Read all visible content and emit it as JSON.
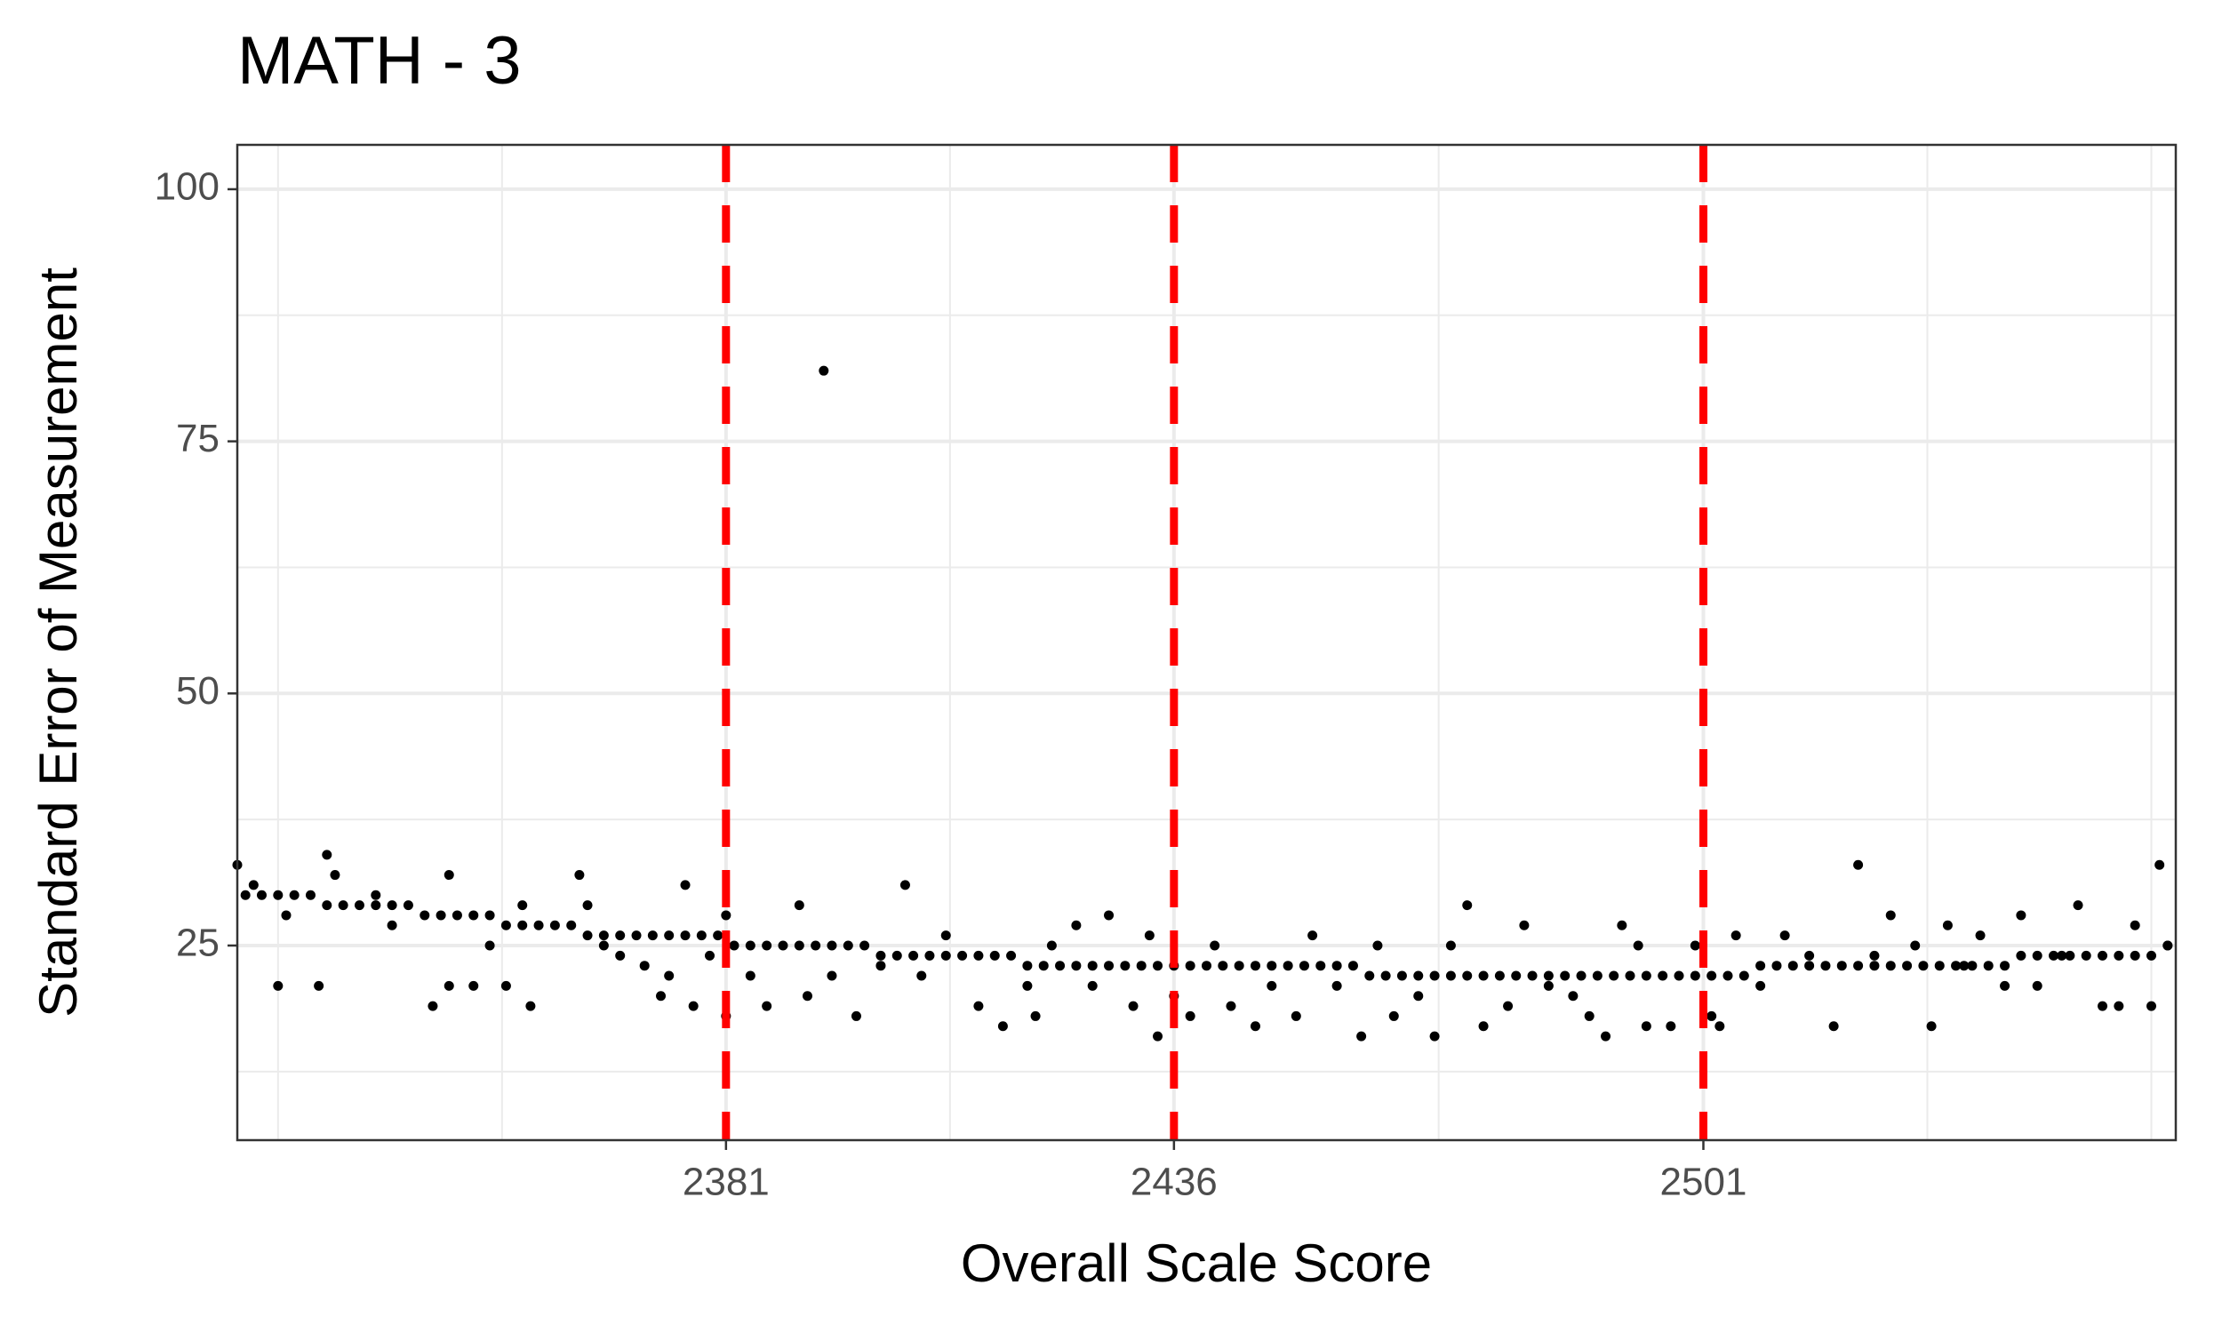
{
  "chart_data": {
    "type": "scatter",
    "title": "MATH - 3",
    "x_label": "Overall Scale Score",
    "y_label": "Standard Error of Measurement",
    "xlim": [
      2321,
      2559
    ],
    "ylim": [
      5.7,
      104.4
    ],
    "xticks": [
      2381,
      2436,
      2501
    ],
    "yticks": [
      25,
      50,
      75,
      100
    ],
    "x_minor_grid": [
      2326,
      2353.5,
      2408.5,
      2468.5,
      2528.5,
      2556
    ],
    "y_minor_grid": [
      12.5,
      37.5,
      62.5,
      87.5
    ],
    "grid": true,
    "vlines": [
      2381,
      2436,
      2501
    ],
    "vline_color": "#ff0000",
    "color": "#000000",
    "x": [
      2322,
      2324,
      2326,
      2328,
      2330,
      2332,
      2334,
      2336,
      2338,
      2340,
      2342,
      2344,
      2346,
      2348,
      2350,
      2352,
      2354,
      2356,
      2358,
      2360,
      2362,
      2364,
      2366,
      2368,
      2370,
      2372,
      2374,
      2376,
      2378,
      2380,
      2382,
      2384,
      2386,
      2388,
      2390,
      2392,
      2394,
      2396,
      2398,
      2400,
      2402,
      2404,
      2406,
      2408,
      2410,
      2412,
      2414,
      2416,
      2418,
      2420,
      2422,
      2424,
      2426,
      2428,
      2430,
      2432,
      2434,
      2436,
      2438,
      2440,
      2442,
      2444,
      2446,
      2448,
      2450,
      2452,
      2454,
      2456,
      2458,
      2460,
      2462,
      2464,
      2466,
      2468,
      2470,
      2472,
      2474,
      2476,
      2478,
      2480,
      2482,
      2484,
      2486,
      2488,
      2490,
      2492,
      2494,
      2496,
      2498,
      2500,
      2502,
      2504,
      2506,
      2508,
      2510,
      2512,
      2514,
      2516,
      2518,
      2520,
      2522,
      2524,
      2526,
      2528,
      2530,
      2532,
      2534,
      2536,
      2538,
      2540,
      2542,
      2544,
      2546,
      2548,
      2550,
      2552,
      2554,
      2556,
      2558,
      2321,
      2323,
      2326,
      2327,
      2331,
      2332,
      2333,
      2338,
      2340,
      2347,
      2345,
      2347,
      2350,
      2352,
      2354,
      2356,
      2357,
      2363,
      2364,
      2366,
      2368,
      2371,
      2373,
      2374,
      2376,
      2377,
      2379,
      2381,
      2381,
      2384,
      2386,
      2390,
      2391,
      2393,
      2394,
      2397,
      2400,
      2403,
      2405,
      2408,
      2412,
      2415,
      2418,
      2419,
      2421,
      2424,
      2426,
      2428,
      2431,
      2433,
      2434,
      2436,
      2438,
      2441,
      2443,
      2446,
      2448,
      2451,
      2453,
      2456,
      2459,
      2461,
      2463,
      2466,
      2468,
      2470,
      2472,
      2474,
      2477,
      2479,
      2482,
      2485,
      2487,
      2489,
      2491,
      2493,
      2494,
      2497,
      2500,
      2502,
      2503,
      2505,
      2508,
      2511,
      2514,
      2517,
      2520,
      2522,
      2524,
      2527,
      2529,
      2531,
      2533,
      2535,
      2538,
      2540,
      2542,
      2545,
      2547,
      2550,
      2552,
      2554,
      2556,
      2557,
      2558
    ],
    "values": [
      30,
      30,
      30,
      30,
      30,
      29,
      29,
      29,
      29,
      29,
      29,
      28,
      28,
      28,
      28,
      28,
      27,
      27,
      27,
      27,
      27,
      26,
      26,
      26,
      26,
      26,
      26,
      26,
      26,
      26,
      25,
      25,
      25,
      25,
      25,
      25,
      25,
      25,
      25,
      24,
      24,
      24,
      24,
      24,
      24,
      24,
      24,
      24,
      23,
      23,
      23,
      23,
      23,
      23,
      23,
      23,
      23,
      23,
      23,
      23,
      23,
      23,
      23,
      23,
      23,
      23,
      23,
      23,
      23,
      22,
      22,
      22,
      22,
      22,
      22,
      22,
      22,
      22,
      22,
      22,
      22,
      22,
      22,
      22,
      22,
      22,
      22,
      22,
      22,
      22,
      22,
      22,
      22,
      23,
      23,
      23,
      23,
      23,
      23,
      23,
      23,
      23,
      23,
      23,
      23,
      23,
      23,
      23,
      23,
      24,
      24,
      24,
      24,
      24,
      24,
      24,
      24,
      24,
      25,
      33,
      31,
      21,
      28,
      21,
      34,
      32,
      30,
      27,
      32,
      19,
      21,
      21,
      25,
      21,
      29,
      19,
      32,
      29,
      25,
      24,
      23,
      20,
      22,
      31,
      19,
      24,
      18,
      28,
      22,
      19,
      29,
      20,
      82,
      22,
      18,
      23,
      31,
      22,
      26,
      19,
      17,
      21,
      18,
      25,
      27,
      21,
      28,
      19,
      26,
      16,
      20,
      18,
      25,
      19,
      17,
      21,
      18,
      26,
      21,
      16,
      25,
      18,
      20,
      16,
      25,
      29,
      17,
      19,
      27,
      21,
      20,
      18,
      16,
      27,
      25,
      17,
      17,
      25,
      18,
      17,
      26,
      21,
      26,
      24,
      17,
      33,
      24,
      28,
      25,
      17,
      27,
      23,
      26,
      21,
      28,
      21,
      24,
      29,
      19,
      19,
      27,
      19,
      33,
      25
    ]
  }
}
